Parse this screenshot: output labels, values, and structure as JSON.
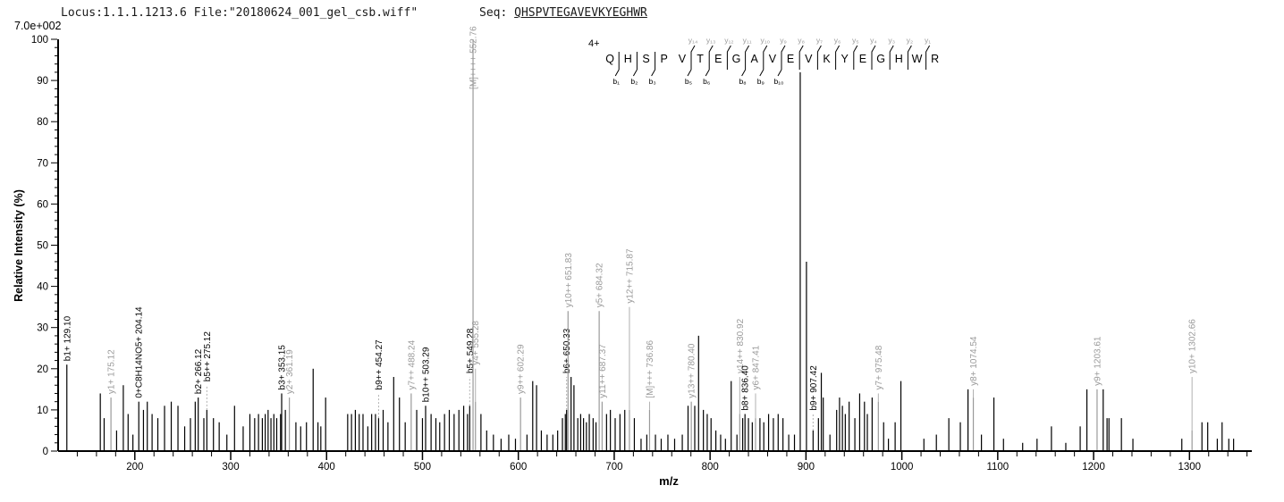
{
  "header": {
    "locus_file": "Locus:1.1.1.1213.6 File:\"20180624_001_gel_csb.wiff\"",
    "seq_prefix": "Seq: ",
    "sequence": "QHSPVTEGAVEVKYEGHWR",
    "max_intensity_label": "7.0e+002"
  },
  "chart_data": {
    "type": "bar",
    "xlabel": "m/z",
    "ylabel": "Relative  Intensity (%)",
    "xlim": [
      120,
      1365
    ],
    "ylim": [
      0,
      100
    ],
    "x_major_ticks": [
      200,
      300,
      400,
      500,
      600,
      700,
      800,
      900,
      1000,
      1100,
      1200,
      1300
    ],
    "x_minor_step": 20,
    "y_major_step": 10,
    "y_minor_step": 2,
    "legend": "none",
    "grid": false,
    "colors": {
      "b_ion": "#000000",
      "y_ion": "#9a9a9a",
      "M_ion": "#9a9a9a",
      "other_ion": "#000000",
      "unlabeled_peak": "#000000",
      "axis": "#000000",
      "connector": "#b0b0b0"
    },
    "precursor_charge": "4+",
    "peptide": {
      "residues": [
        "Q",
        "H",
        "S",
        "P",
        "V",
        "T",
        "E",
        "G",
        "A",
        "V",
        "E",
        "V",
        "K",
        "Y",
        "E",
        "G",
        "H",
        "W",
        "R"
      ],
      "gaps": [
        {
          "after": 1,
          "b": "b₁"
        },
        {
          "after": 2,
          "b": "b₂"
        },
        {
          "after": 3,
          "b": "b₃"
        },
        {
          "after": 5,
          "y": "y₁₄",
          "b": "b₅"
        },
        {
          "after": 6,
          "y": "y₁₃",
          "b": "b₆"
        },
        {
          "after": 7,
          "y": "y₁₂"
        },
        {
          "after": 8,
          "y": "y₁₁",
          "b": "b₈"
        },
        {
          "after": 9,
          "y": "y₁₀",
          "b": "b₉"
        },
        {
          "after": 10,
          "y": "y₉",
          "b": "b₁₀"
        },
        {
          "after": 11,
          "y": "y₈"
        },
        {
          "after": 12,
          "y": "y₇"
        },
        {
          "after": 13,
          "y": "y₆"
        },
        {
          "after": 14,
          "y": "y₅"
        },
        {
          "after": 15,
          "y": "y₄"
        },
        {
          "after": 16,
          "y": "y₃"
        },
        {
          "after": 17,
          "y": "y₂"
        },
        {
          "after": 18,
          "y": "y₁"
        }
      ]
    },
    "peaks_format": "[mz, intensity_pct, label?, ion_type?, label_anchor_pct?]",
    "peaks": [
      [
        129.1,
        21,
        "b1+ 129.10",
        "b"
      ],
      [
        164,
        14
      ],
      [
        168,
        8
      ],
      [
        175.12,
        13,
        "y1+ 175.12",
        "y"
      ],
      [
        181,
        5
      ],
      [
        188,
        16
      ],
      [
        193,
        9
      ],
      [
        198,
        4
      ],
      [
        204.14,
        12,
        "0+C8H14NO5+ 204.14",
        "other"
      ],
      [
        209,
        10
      ],
      [
        213,
        12
      ],
      [
        218,
        9
      ],
      [
        224,
        8
      ],
      [
        231,
        11
      ],
      [
        238,
        12
      ],
      [
        245,
        11
      ],
      [
        252,
        6
      ],
      [
        258,
        8
      ],
      [
        263,
        12
      ],
      [
        266.12,
        13,
        "b2+ 266.12",
        "b"
      ],
      [
        272,
        8
      ],
      [
        275.12,
        10,
        "b5++ 275.12",
        "b",
        16
      ],
      [
        282,
        8
      ],
      [
        288,
        7
      ],
      [
        296,
        4
      ],
      [
        304,
        11
      ],
      [
        313,
        6
      ],
      [
        320,
        9
      ],
      [
        325,
        8
      ],
      [
        329,
        9
      ],
      [
        333,
        8
      ],
      [
        336,
        9
      ],
      [
        339,
        10
      ],
      [
        342,
        8
      ],
      [
        345,
        9
      ],
      [
        348,
        8
      ],
      [
        352,
        9
      ],
      [
        353.15,
        14,
        "b3+ 353.15",
        "b"
      ],
      [
        357,
        10
      ],
      [
        361.19,
        13,
        "y2+ 361.19",
        "y"
      ],
      [
        368,
        7
      ],
      [
        373,
        6
      ],
      [
        379,
        7
      ],
      [
        386,
        20
      ],
      [
        391,
        7
      ],
      [
        394,
        6
      ],
      [
        399,
        13
      ],
      [
        422,
        9
      ],
      [
        426,
        9
      ],
      [
        430,
        10
      ],
      [
        434,
        9
      ],
      [
        438,
        9
      ],
      [
        443,
        6
      ],
      [
        447,
        9
      ],
      [
        451,
        9
      ],
      [
        454.27,
        8,
        "b9++ 454.27",
        "b",
        14
      ],
      [
        459,
        10
      ],
      [
        464,
        7
      ],
      [
        470,
        18
      ],
      [
        476,
        13
      ],
      [
        482,
        7
      ],
      [
        488.24,
        14,
        "y7++ 488.24",
        "y"
      ],
      [
        494,
        10
      ],
      [
        500,
        8
      ],
      [
        503.29,
        11,
        "b10++ 503.29",
        "b"
      ],
      [
        509,
        9
      ],
      [
        514,
        8
      ],
      [
        518,
        7
      ],
      [
        523,
        9
      ],
      [
        528,
        10
      ],
      [
        533,
        9
      ],
      [
        538,
        10
      ],
      [
        543,
        11
      ],
      [
        547,
        9
      ],
      [
        549.28,
        11,
        "b5+ 549.28",
        "b",
        18
      ],
      [
        552.76,
        100,
        "[M]++++ 552.76",
        "M",
        87
      ],
      [
        555.28,
        12,
        "y4+ 555.28",
        "y",
        20
      ],
      [
        561,
        9
      ],
      [
        567,
        5
      ],
      [
        574,
        4
      ],
      [
        582,
        3
      ],
      [
        590,
        4
      ],
      [
        597,
        3
      ],
      [
        602.29,
        13,
        "y9++ 602.29",
        "y"
      ],
      [
        609,
        4
      ],
      [
        615,
        17
      ],
      [
        619,
        16
      ],
      [
        624,
        5
      ],
      [
        630,
        4
      ],
      [
        636,
        4
      ],
      [
        641,
        5
      ],
      [
        646,
        8
      ],
      [
        649,
        9
      ],
      [
        650.33,
        10,
        "b6+ 650.33",
        "b",
        18
      ],
      [
        651.83,
        34,
        "y10++ 651.83",
        "y"
      ],
      [
        655,
        18
      ],
      [
        658,
        16
      ],
      [
        662,
        8
      ],
      [
        665,
        9
      ],
      [
        668,
        8
      ],
      [
        671,
        7
      ],
      [
        674,
        9
      ],
      [
        678,
        8
      ],
      [
        681,
        7
      ],
      [
        684.32,
        34,
        "y5+ 684.32",
        "y"
      ],
      [
        687.37,
        12,
        "y11++ 687.37",
        "y"
      ],
      [
        692,
        9
      ],
      [
        696,
        10
      ],
      [
        701,
        8
      ],
      [
        706,
        9
      ],
      [
        711,
        10
      ],
      [
        715.87,
        10,
        "y12++ 715.87",
        "y",
        35
      ],
      [
        721,
        8
      ],
      [
        728,
        3
      ],
      [
        734,
        4
      ],
      [
        736.86,
        10,
        "[M]+++ 736.86",
        "M",
        12
      ],
      [
        743,
        4
      ],
      [
        749,
        3
      ],
      [
        756,
        4
      ],
      [
        763,
        3
      ],
      [
        771,
        4
      ],
      [
        777,
        11
      ],
      [
        780.4,
        12,
        "y13++ 780.40",
        "y"
      ],
      [
        784,
        11
      ],
      [
        788,
        28
      ],
      [
        793,
        10
      ],
      [
        797,
        9
      ],
      [
        801,
        8
      ],
      [
        806,
        5
      ],
      [
        811,
        4
      ],
      [
        816,
        3
      ],
      [
        822,
        17
      ],
      [
        828,
        4
      ],
      [
        830.92,
        9,
        "y14++ 830.92",
        "y",
        18
      ],
      [
        834,
        8
      ],
      [
        836.4,
        9,
        "b8+ 836.40",
        "b"
      ],
      [
        840,
        8
      ],
      [
        844,
        7
      ],
      [
        847.41,
        8,
        "y6+ 847.41",
        "y",
        14
      ],
      [
        852,
        8
      ],
      [
        856,
        7
      ],
      [
        861,
        9
      ],
      [
        866,
        8
      ],
      [
        871,
        9
      ],
      [
        876,
        8
      ],
      [
        882,
        4
      ],
      [
        888,
        4
      ],
      [
        894,
        92
      ],
      [
        900.5,
        46
      ],
      [
        907.42,
        5,
        "b9+ 907.42",
        "b",
        9
      ],
      [
        913,
        8
      ],
      [
        916,
        19
      ],
      [
        918,
        13
      ],
      [
        925,
        4
      ],
      [
        932,
        10
      ],
      [
        935,
        13
      ],
      [
        938,
        11
      ],
      [
        941,
        9
      ],
      [
        945,
        12
      ],
      [
        951,
        8
      ],
      [
        956,
        14
      ],
      [
        961,
        12
      ],
      [
        964,
        9
      ],
      [
        969,
        13
      ],
      [
        975.48,
        12,
        "y7+ 975.48",
        "y",
        14
      ],
      [
        981,
        7
      ],
      [
        986,
        3
      ],
      [
        993,
        7
      ],
      [
        999,
        17
      ],
      [
        1023,
        3
      ],
      [
        1036,
        4
      ],
      [
        1049,
        8
      ],
      [
        1061,
        7
      ],
      [
        1069,
        15
      ],
      [
        1074.54,
        13,
        "y8+ 1074.54",
        "y",
        15
      ],
      [
        1083,
        4
      ],
      [
        1096,
        13
      ],
      [
        1106,
        3
      ],
      [
        1126,
        2
      ],
      [
        1141,
        3
      ],
      [
        1156,
        6
      ],
      [
        1171,
        2
      ],
      [
        1186,
        6
      ],
      [
        1193,
        15
      ],
      [
        1203.61,
        15,
        "y9+ 1203.61",
        "y"
      ],
      [
        1210,
        15
      ],
      [
        1214,
        8
      ],
      [
        1216,
        8
      ],
      [
        1229,
        8
      ],
      [
        1241,
        3
      ],
      [
        1292,
        3
      ],
      [
        1302.66,
        5,
        "y10+ 1302.66",
        "y",
        18
      ],
      [
        1313,
        7
      ],
      [
        1319,
        7
      ],
      [
        1329,
        3
      ],
      [
        1334,
        7
      ],
      [
        1341,
        3
      ],
      [
        1346,
        3
      ]
    ]
  }
}
